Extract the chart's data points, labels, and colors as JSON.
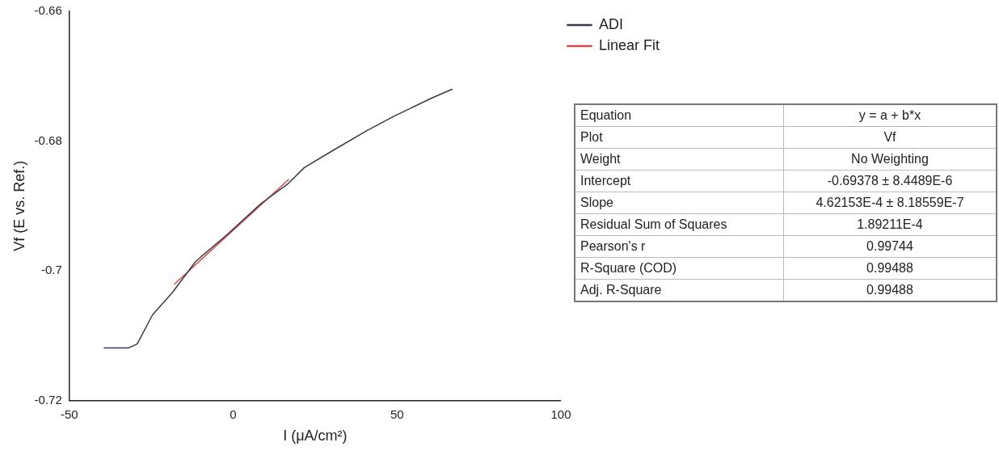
{
  "chart_data": {
    "type": "line",
    "xlabel": "I (μA/cm²)",
    "ylabel": "Vf (E vs. Ref.)",
    "xlim": [
      -50,
      100
    ],
    "xticks": [
      -50,
      0,
      50,
      100
    ],
    "ylim": [
      -0.72,
      -0.66
    ],
    "yticks": [
      -0.72,
      -0.7,
      -0.68,
      -0.66
    ],
    "grid": false,
    "legend": "top right",
    "marker": "none",
    "line_style": "solid",
    "series": [
      {
        "name": "ADI",
        "color": "#3a3a48",
        "x": [
          -39.5,
          -31.9,
          -29.3,
          -24.6,
          -18.6,
          -11.5,
          -1.8,
          8.6,
          16.5,
          21.7,
          30.3,
          40.8,
          49.4,
          60.9,
          66.9
        ],
        "values": [
          -0.7119,
          -0.7119,
          -0.7113,
          -0.7068,
          -0.7034,
          -0.6986,
          -0.6944,
          -0.6896,
          -0.6867,
          -0.6841,
          -0.6815,
          -0.6784,
          -0.6761,
          -0.6733,
          -0.672
        ]
      },
      {
        "name": "Linear Fit",
        "color": "#d04848",
        "x": [
          -18,
          17
        ],
        "values": [
          -0.7021,
          -0.6859
        ]
      }
    ],
    "annotations": [
      "Equation",
      "y = a + b*x",
      "Plot",
      "Vf",
      "Weight",
      "No Weighting",
      "Intercept",
      "-0.69378 ± 8.4489E-6",
      "Slope",
      "4.62153E-4 ± 8.18559E-7",
      "Residual Sum of Squares",
      "1.89211E-4",
      "Pearson's r",
      "0.99744",
      "R-Square (COD)",
      "0.99488",
      "Adj. R-Square",
      "0.99488"
    ]
  }
}
